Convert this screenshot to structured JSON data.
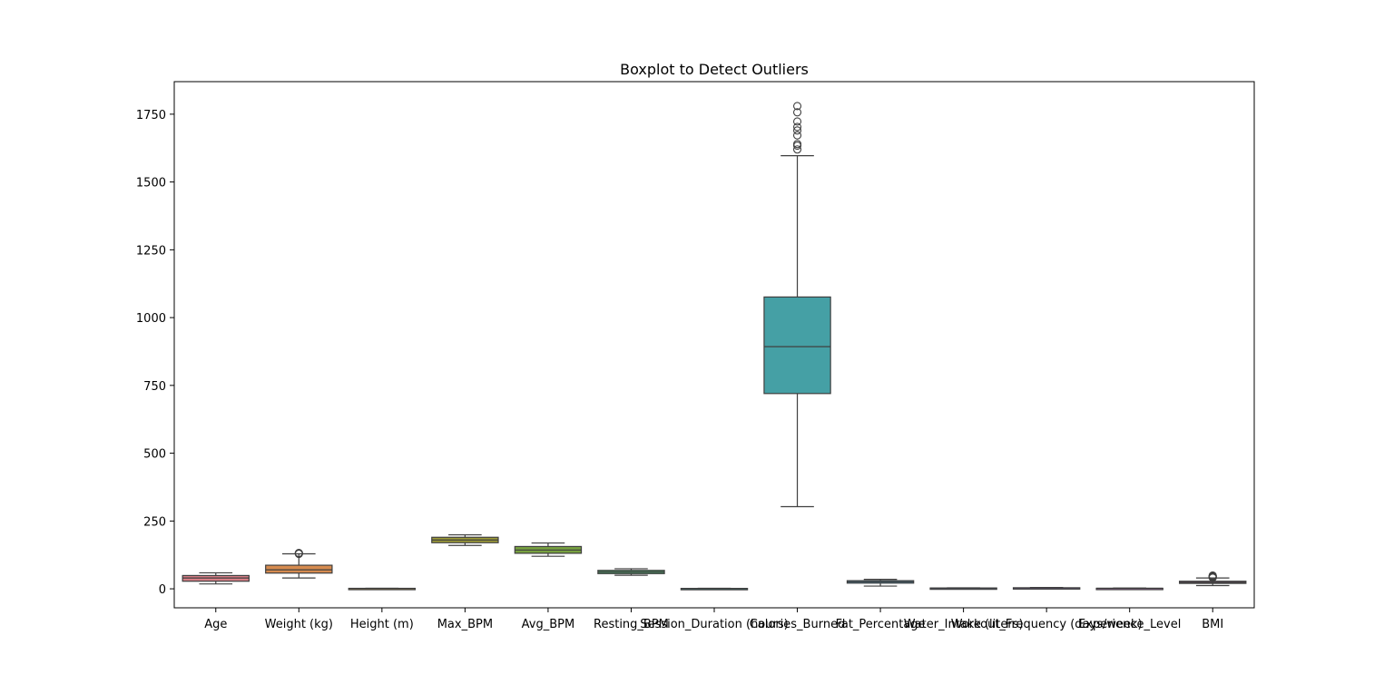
{
  "chart_data": {
    "type": "box",
    "title": "Boxplot to Detect Outliers",
    "xlabel": "",
    "ylabel": "",
    "ylim": [
      -70,
      1870
    ],
    "yticks": [
      0,
      250,
      500,
      750,
      1000,
      1250,
      1500,
      1750
    ],
    "grid": false,
    "series": [
      {
        "name": "Age",
        "color": "#d77e86",
        "whisker_low": 18,
        "q1": 28,
        "median": 40,
        "q3": 49,
        "whisker_high": 59,
        "outliers": []
      },
      {
        "name": "Weight (kg)",
        "color": "#d68b4f",
        "whisker_low": 40,
        "q1": 58,
        "median": 70,
        "q3": 87,
        "whisker_high": 129,
        "outliers": [
          130,
          132,
          129
        ]
      },
      {
        "name": "Height (m)",
        "color": "#b89b52",
        "whisker_low": 1.5,
        "q1": 1.62,
        "median": 1.71,
        "q3": 1.8,
        "whisker_high": 2.0,
        "outliers": []
      },
      {
        "name": "Max_BPM",
        "color": "#9c9a37",
        "whisker_low": 160,
        "q1": 170,
        "median": 180,
        "q3": 190,
        "whisker_high": 199,
        "outliers": []
      },
      {
        "name": "Avg_BPM",
        "color": "#77a040",
        "whisker_low": 120,
        "q1": 131,
        "median": 143,
        "q3": 156,
        "whisker_high": 169,
        "outliers": []
      },
      {
        "name": "Resting_BPM",
        "color": "#4ea66c",
        "whisker_low": 50,
        "q1": 56,
        "median": 62,
        "q3": 68,
        "whisker_high": 74,
        "outliers": []
      },
      {
        "name": "Session_Duration (hours)",
        "color": "#41a395",
        "whisker_low": 0.5,
        "q1": 1.0,
        "median": 1.26,
        "q3": 1.46,
        "whisker_high": 2.0,
        "outliers": []
      },
      {
        "name": "Calories_Burned",
        "color": "#45a0a5",
        "whisker_low": 303,
        "q1": 720,
        "median": 893,
        "q3": 1076,
        "whisker_high": 1597,
        "outliers": [
          1620,
          1634,
          1640,
          1672,
          1690,
          1703,
          1723,
          1757,
          1780
        ]
      },
      {
        "name": "Fat_Percentage",
        "color": "#4a9dc0",
        "whisker_low": 10,
        "q1": 21,
        "median": 26,
        "q3": 30,
        "whisker_high": 35,
        "outliers": []
      },
      {
        "name": "Water_Intake (liters)",
        "color": "#7d94d6",
        "whisker_low": 1.5,
        "q1": 2.2,
        "median": 2.6,
        "q3": 3.1,
        "whisker_high": 3.7,
        "outliers": []
      },
      {
        "name": "Workout_Frequency (days/week)",
        "color": "#a98be0",
        "whisker_low": 2,
        "q1": 3,
        "median": 3,
        "q3": 4,
        "whisker_high": 5,
        "outliers": []
      },
      {
        "name": "Experience_Level",
        "color": "#d27fd6",
        "whisker_low": 1,
        "q1": 1,
        "median": 2,
        "q3": 2,
        "whisker_high": 3,
        "outliers": []
      },
      {
        "name": "BMI",
        "color": "#d97cac",
        "whisker_low": 12,
        "q1": 20,
        "median": 24,
        "q3": 28,
        "whisker_high": 40,
        "outliers": [
          41,
          43,
          45,
          47,
          49
        ]
      }
    ]
  }
}
